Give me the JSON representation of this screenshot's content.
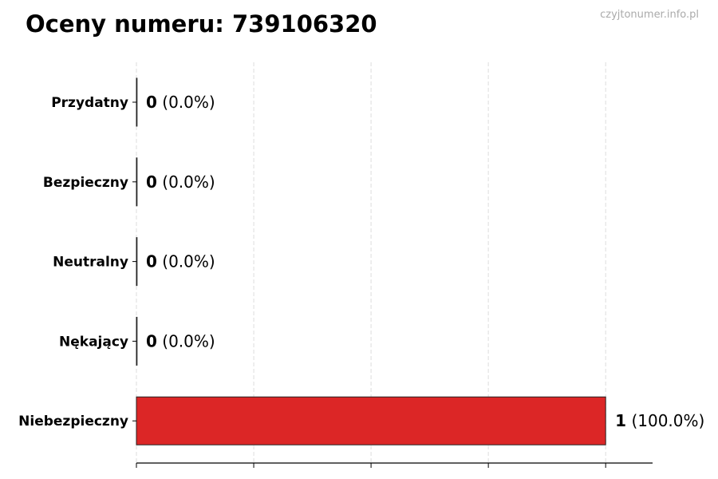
{
  "watermark": "czyjtonumer.info.pl",
  "chart_data": {
    "type": "bar",
    "orientation": "horizontal",
    "title": "Oceny numeru: 739106320",
    "categories": [
      "Przydatny",
      "Bezpieczny",
      "Neutralny",
      "Nękający",
      "Niebezpieczny"
    ],
    "values": [
      0,
      0,
      0,
      0,
      1
    ],
    "labels": [
      "(0.0%)",
      "(0.0%)",
      "(0.0%)",
      "(0.0%)",
      "(100.0%)"
    ],
    "colors": [
      "#2e7d32",
      "#43a047",
      "#9e9e9e",
      "#fb8c00",
      "#dc2626"
    ],
    "xlim": [
      0,
      1.1
    ],
    "xticks": [
      0,
      0.25,
      0.5,
      0.75,
      1
    ],
    "xtick_labels_shown": false,
    "grid": "vertical dashed",
    "xlabel": "",
    "ylabel": ""
  }
}
